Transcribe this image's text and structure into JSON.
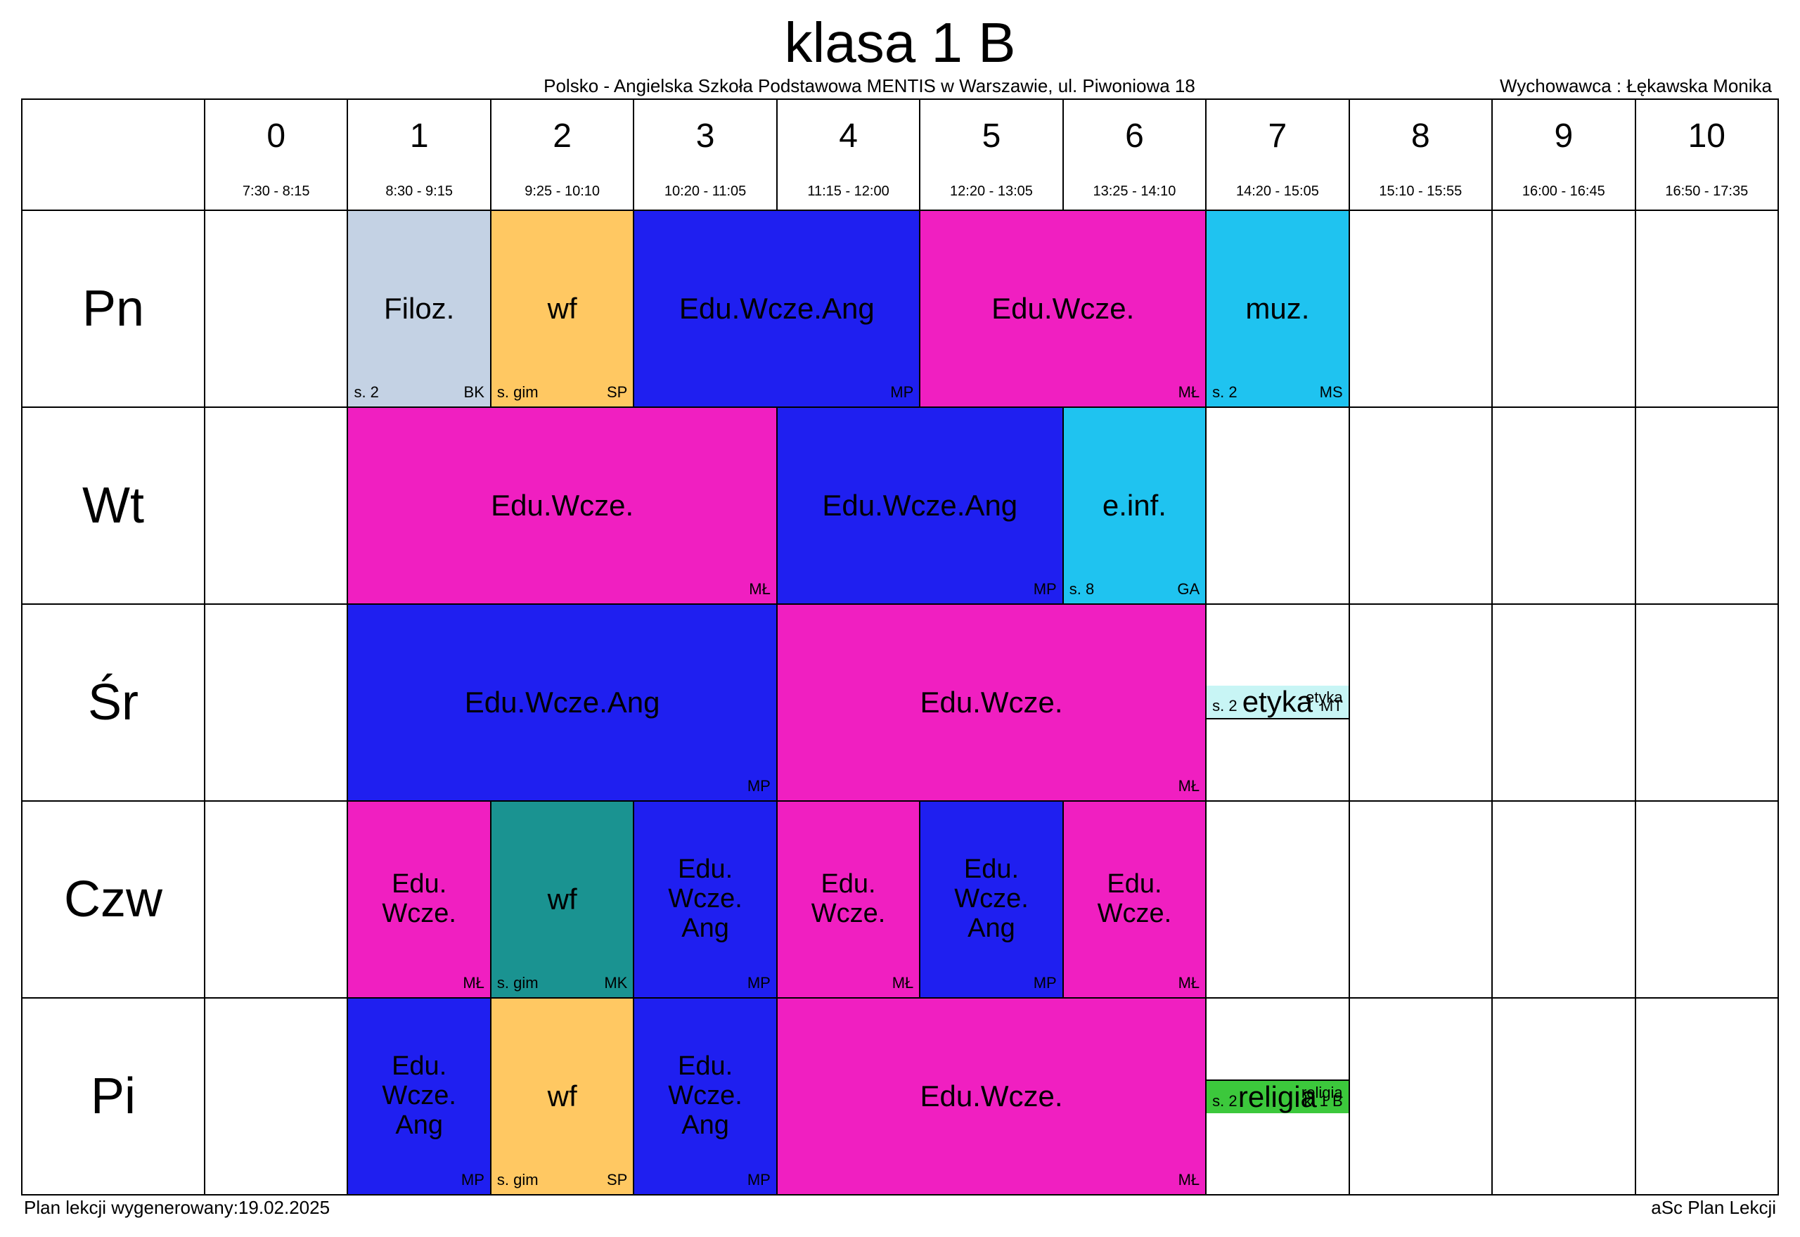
{
  "title": "klasa 1 B",
  "school": "Polsko - Angielska Szkoła Podstawowa MENTIS w Warszawie, ul. Piwoniowa 18",
  "form_teacher_label": "Wychowawca : Łękawska Monika",
  "generated_label": "Plan lekcji wygenerowany:19.02.2025",
  "software_label": "aSc Plan Lekcji",
  "colors": {
    "filoz": "#c4d2e4",
    "wf_yellow": "#ffc862",
    "wf_teal": "#1a9391",
    "eduang": "#1f1ff0",
    "eduwcze": "#f01fc1",
    "muz": "#1fc3f0",
    "einf": "#1fc3f0",
    "etyka": "#c8f5f5",
    "religia": "#3cc83c",
    "white": "#ffffff"
  },
  "periods": [
    {
      "num": "0",
      "time": "7:30 - 8:15"
    },
    {
      "num": "1",
      "time": "8:30 - 9:15"
    },
    {
      "num": "2",
      "time": "9:25 - 10:10"
    },
    {
      "num": "3",
      "time": "10:20 - 11:05"
    },
    {
      "num": "4",
      "time": "11:15 - 12:00"
    },
    {
      "num": "5",
      "time": "12:20 - 13:05"
    },
    {
      "num": "6",
      "time": "13:25 - 14:10"
    },
    {
      "num": "7",
      "time": "14:20 - 15:05"
    },
    {
      "num": "8",
      "time": "15:10 - 15:55"
    },
    {
      "num": "9",
      "time": "16:00 - 16:45"
    },
    {
      "num": "10",
      "time": "16:50 - 17:35"
    }
  ],
  "days": [
    "Pn",
    "Wt",
    "Śr",
    "Czw",
    "Pi"
  ],
  "labels": {
    "filoz": "Filoz.",
    "wf": "wf",
    "eduang": "Edu.Wcze.Ang",
    "eduang_ml": "Edu.\nWcze.\nAng",
    "eduwcze": "Edu.Wcze.",
    "eduwcze_ml": "Edu.\nWcze.",
    "muz": "muz.",
    "einf": "e.inf.",
    "etyka": "etyka",
    "etyka_grp": "etyka",
    "religia": "religia",
    "religia_grp": "religia"
  },
  "rooms": {
    "s2": "s. 2",
    "sgim": "s. gim",
    "s8": "s. 8"
  },
  "teachers": {
    "BK": "BK",
    "SP": "SP",
    "MP": "MP",
    "ML": "MŁ",
    "MS": "MS",
    "GA": "GA",
    "MT": "MT",
    "MK": "MK",
    "kl1B": "kl 1 B"
  }
}
